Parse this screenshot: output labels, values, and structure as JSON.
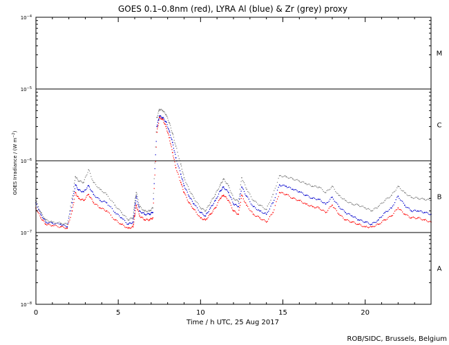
{
  "chart_data": {
    "type": "scatter",
    "title": "GOES 0.1–0.8nm (red), LYRA Al (blue) & Zr (grey) proxy",
    "xlabel": "Time / h UTC, 25 Aug 2017",
    "ylabel": "GOES Irradiance / (W m",
    "ylabel_sup": "−2",
    "ylabel_close": ")",
    "xlim": [
      0,
      24
    ],
    "ylim": [
      1e-08,
      0.0001
    ],
    "yscale": "log",
    "x_ticks": [
      {
        "value": 0,
        "label": "0"
      },
      {
        "value": 5,
        "label": "5"
      },
      {
        "value": 10,
        "label": "10"
      },
      {
        "value": 15,
        "label": "15"
      },
      {
        "value": 20,
        "label": "20"
      }
    ],
    "y_ticks": [
      {
        "value": 0.0001,
        "base": "10",
        "exp": "−4"
      },
      {
        "value": 1e-05,
        "base": "10",
        "exp": "−5"
      },
      {
        "value": 1e-06,
        "base": "10",
        "exp": "−6"
      },
      {
        "value": 1e-07,
        "base": "10",
        "exp": "−7"
      },
      {
        "value": 1e-08,
        "base": "10",
        "exp": "−8"
      }
    ],
    "flare_classes": [
      {
        "label": "M",
        "value": 3.2e-05
      },
      {
        "label": "C",
        "value": 3.2e-06
      },
      {
        "label": "B",
        "value": 3.2e-07
      },
      {
        "label": "A",
        "value": 3.2e-08
      }
    ],
    "threshold_lines": [
      1e-05,
      1e-06,
      1e-07
    ],
    "series": [
      {
        "name": "GOES 0.1–0.8nm",
        "color": "#ff0000",
        "points": [
          [
            0,
            2.2e-07
          ],
          [
            0.3,
            1.6e-07
          ],
          [
            0.6,
            1.3e-07
          ],
          [
            1.0,
            1.25e-07
          ],
          [
            1.5,
            1.2e-07
          ],
          [
            1.9,
            1.15e-07
          ],
          [
            2.2,
            2e-07
          ],
          [
            2.4,
            3.6e-07
          ],
          [
            2.6,
            3e-07
          ],
          [
            2.9,
            2.8e-07
          ],
          [
            3.2,
            3.4e-07
          ],
          [
            3.5,
            2.6e-07
          ],
          [
            3.9,
            2.2e-07
          ],
          [
            4.3,
            2e-07
          ],
          [
            4.8,
            1.5e-07
          ],
          [
            5.2,
            1.3e-07
          ],
          [
            5.6,
            1.15e-07
          ],
          [
            5.9,
            1.2e-07
          ],
          [
            6.0,
            1.7e-07
          ],
          [
            6.1,
            2.4e-07
          ],
          [
            6.3,
            1.7e-07
          ],
          [
            6.6,
            1.5e-07
          ],
          [
            6.9,
            1.5e-07
          ],
          [
            7.1,
            1.6e-07
          ],
          [
            7.35,
            2.5e-06
          ],
          [
            7.5,
            4e-06
          ],
          [
            7.7,
            3.8e-06
          ],
          [
            7.9,
            3e-06
          ],
          [
            8.1,
            2.1e-06
          ],
          [
            8.3,
            1.3e-06
          ],
          [
            8.5,
            8e-07
          ],
          [
            8.8,
            5e-07
          ],
          [
            9.0,
            3.6e-07
          ],
          [
            9.3,
            2.6e-07
          ],
          [
            9.6,
            2.1e-07
          ],
          [
            10.0,
            1.6e-07
          ],
          [
            10.3,
            1.5e-07
          ],
          [
            10.6,
            1.8e-07
          ],
          [
            10.9,
            2.2e-07
          ],
          [
            11.2,
            3e-07
          ],
          [
            11.4,
            3.3e-07
          ],
          [
            11.7,
            2.8e-07
          ],
          [
            12.0,
            2e-07
          ],
          [
            12.3,
            1.8e-07
          ],
          [
            12.5,
            3.3e-07
          ],
          [
            12.8,
            2.4e-07
          ],
          [
            13.2,
            1.8e-07
          ],
          [
            13.6,
            1.6e-07
          ],
          [
            14.0,
            1.4e-07
          ],
          [
            14.4,
            1.9e-07
          ],
          [
            14.8,
            3.6e-07
          ],
          [
            15.2,
            3.4e-07
          ],
          [
            15.6,
            3e-07
          ],
          [
            16.0,
            2.8e-07
          ],
          [
            16.4,
            2.5e-07
          ],
          [
            16.8,
            2.3e-07
          ],
          [
            17.2,
            2.2e-07
          ],
          [
            17.6,
            1.9e-07
          ],
          [
            18.0,
            2.4e-07
          ],
          [
            18.4,
            1.8e-07
          ],
          [
            18.8,
            1.5e-07
          ],
          [
            19.2,
            1.4e-07
          ],
          [
            19.6,
            1.3e-07
          ],
          [
            20.0,
            1.2e-07
          ],
          [
            20.4,
            1.2e-07
          ],
          [
            20.8,
            1.3e-07
          ],
          [
            21.2,
            1.5e-07
          ],
          [
            21.6,
            1.7e-07
          ],
          [
            22.0,
            2.2e-07
          ],
          [
            22.4,
            1.8e-07
          ],
          [
            22.8,
            1.6e-07
          ],
          [
            23.2,
            1.6e-07
          ],
          [
            23.6,
            1.5e-07
          ],
          [
            24.0,
            1.4e-07
          ]
        ]
      },
      {
        "name": "LYRA Al",
        "color": "#0000cc",
        "points": [
          [
            0,
            2.6e-07
          ],
          [
            0.3,
            1.8e-07
          ],
          [
            0.6,
            1.4e-07
          ],
          [
            1.0,
            1.35e-07
          ],
          [
            1.5,
            1.3e-07
          ],
          [
            1.9,
            1.2e-07
          ],
          [
            2.2,
            2.6e-07
          ],
          [
            2.4,
            4.6e-07
          ],
          [
            2.6,
            3.9e-07
          ],
          [
            2.9,
            3.7e-07
          ],
          [
            3.2,
            4.5e-07
          ],
          [
            3.5,
            3.4e-07
          ],
          [
            3.9,
            2.8e-07
          ],
          [
            4.3,
            2.6e-07
          ],
          [
            4.8,
            1.9e-07
          ],
          [
            5.2,
            1.6e-07
          ],
          [
            5.6,
            1.3e-07
          ],
          [
            5.9,
            1.4e-07
          ],
          [
            6.0,
            2.2e-07
          ],
          [
            6.1,
            3.2e-07
          ],
          [
            6.3,
            2e-07
          ],
          [
            6.6,
            1.8e-07
          ],
          [
            6.9,
            1.8e-07
          ],
          [
            7.1,
            1.9e-07
          ],
          [
            7.35,
            3e-06
          ],
          [
            7.5,
            4.2e-06
          ],
          [
            7.7,
            4e-06
          ],
          [
            7.9,
            3.5e-06
          ],
          [
            8.1,
            2.6e-06
          ],
          [
            8.3,
            1.8e-06
          ],
          [
            8.5,
            1.1e-06
          ],
          [
            8.8,
            6.5e-07
          ],
          [
            9.0,
            4.5e-07
          ],
          [
            9.3,
            3.2e-07
          ],
          [
            9.6,
            2.5e-07
          ],
          [
            10.0,
            1.9e-07
          ],
          [
            10.3,
            1.7e-07
          ],
          [
            10.6,
            2.2e-07
          ],
          [
            10.9,
            2.8e-07
          ],
          [
            11.2,
            3.8e-07
          ],
          [
            11.4,
            4.3e-07
          ],
          [
            11.7,
            3.6e-07
          ],
          [
            12.0,
            2.5e-07
          ],
          [
            12.3,
            2.3e-07
          ],
          [
            12.5,
            4.3e-07
          ],
          [
            12.8,
            3.2e-07
          ],
          [
            13.2,
            2.3e-07
          ],
          [
            13.6,
            2e-07
          ],
          [
            14.0,
            1.8e-07
          ],
          [
            14.4,
            2.6e-07
          ],
          [
            14.8,
            4.6e-07
          ],
          [
            15.2,
            4.4e-07
          ],
          [
            15.6,
            4e-07
          ],
          [
            16.0,
            3.7e-07
          ],
          [
            16.4,
            3.3e-07
          ],
          [
            16.8,
            3e-07
          ],
          [
            17.2,
            2.9e-07
          ],
          [
            17.6,
            2.5e-07
          ],
          [
            18.0,
            3.1e-07
          ],
          [
            18.4,
            2.3e-07
          ],
          [
            18.8,
            1.9e-07
          ],
          [
            19.2,
            1.7e-07
          ],
          [
            19.6,
            1.5e-07
          ],
          [
            20.0,
            1.4e-07
          ],
          [
            20.4,
            1.3e-07
          ],
          [
            20.8,
            1.5e-07
          ],
          [
            21.2,
            1.9e-07
          ],
          [
            21.6,
            2.2e-07
          ],
          [
            22.0,
            3.2e-07
          ],
          [
            22.4,
            2.4e-07
          ],
          [
            22.8,
            2e-07
          ],
          [
            23.2,
            2e-07
          ],
          [
            23.6,
            1.9e-07
          ],
          [
            24.0,
            1.8e-07
          ]
        ]
      },
      {
        "name": "Zr",
        "color": "#808080",
        "points": [
          [
            0,
            2.8e-07
          ],
          [
            0.3,
            1.9e-07
          ],
          [
            0.6,
            1.5e-07
          ],
          [
            1.0,
            1.4e-07
          ],
          [
            1.5,
            1.35e-07
          ],
          [
            1.9,
            1.3e-07
          ],
          [
            2.2,
            3e-07
          ],
          [
            2.4,
            6e-07
          ],
          [
            2.6,
            5.2e-07
          ],
          [
            2.9,
            5e-07
          ],
          [
            3.2,
            7.5e-07
          ],
          [
            3.5,
            5e-07
          ],
          [
            3.9,
            4e-07
          ],
          [
            4.3,
            3.4e-07
          ],
          [
            4.8,
            2.4e-07
          ],
          [
            5.2,
            1.9e-07
          ],
          [
            5.6,
            1.5e-07
          ],
          [
            5.9,
            1.6e-07
          ],
          [
            6.0,
            2.6e-07
          ],
          [
            6.1,
            3.6e-07
          ],
          [
            6.3,
            2.3e-07
          ],
          [
            6.6,
            2e-07
          ],
          [
            6.9,
            2e-07
          ],
          [
            7.1,
            2.2e-07
          ],
          [
            7.35,
            4e-06
          ],
          [
            7.5,
            5.2e-06
          ],
          [
            7.7,
            5e-06
          ],
          [
            7.9,
            4.4e-06
          ],
          [
            8.1,
            3.4e-06
          ],
          [
            8.3,
            2.4e-06
          ],
          [
            8.5,
            1.6e-06
          ],
          [
            8.8,
            9e-07
          ],
          [
            9.0,
            5.8e-07
          ],
          [
            9.3,
            4e-07
          ],
          [
            9.6,
            3e-07
          ],
          [
            10.0,
            2.2e-07
          ],
          [
            10.3,
            2e-07
          ],
          [
            10.6,
            2.6e-07
          ],
          [
            10.9,
            3.4e-07
          ],
          [
            11.2,
            4.6e-07
          ],
          [
            11.4,
            5.6e-07
          ],
          [
            11.7,
            4.5e-07
          ],
          [
            12.0,
            3e-07
          ],
          [
            12.3,
            2.7e-07
          ],
          [
            12.5,
            5.8e-07
          ],
          [
            12.8,
            4e-07
          ],
          [
            13.2,
            2.8e-07
          ],
          [
            13.6,
            2.4e-07
          ],
          [
            14.0,
            2.1e-07
          ],
          [
            14.4,
            3.4e-07
          ],
          [
            14.8,
            6.2e-07
          ],
          [
            15.2,
            6e-07
          ],
          [
            15.6,
            5.6e-07
          ],
          [
            16.0,
            5.2e-07
          ],
          [
            16.4,
            4.8e-07
          ],
          [
            16.8,
            4.4e-07
          ],
          [
            17.2,
            4.3e-07
          ],
          [
            17.6,
            3.6e-07
          ],
          [
            18.0,
            4.4e-07
          ],
          [
            18.4,
            3.3e-07
          ],
          [
            18.8,
            2.8e-07
          ],
          [
            19.2,
            2.5e-07
          ],
          [
            19.6,
            2.4e-07
          ],
          [
            20.0,
            2.2e-07
          ],
          [
            20.4,
            2e-07
          ],
          [
            20.8,
            2.3e-07
          ],
          [
            21.2,
            2.8e-07
          ],
          [
            21.6,
            3.3e-07
          ],
          [
            22.0,
            4.4e-07
          ],
          [
            22.4,
            3.6e-07
          ],
          [
            22.8,
            3.1e-07
          ],
          [
            23.2,
            3e-07
          ],
          [
            23.6,
            2.9e-07
          ],
          [
            24.0,
            2.8e-07
          ]
        ]
      }
    ],
    "grid": false
  },
  "footer": {
    "credit": "ROB/SIDC, Brussels, Belgium"
  }
}
